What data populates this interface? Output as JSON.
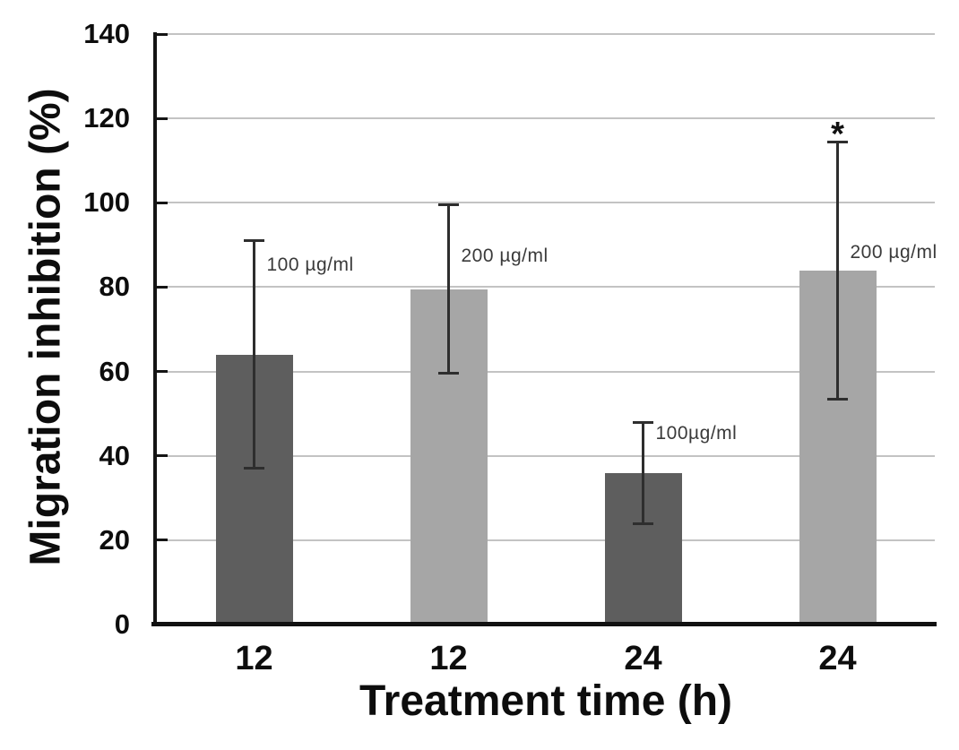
{
  "figure": {
    "background": "#ffffff"
  },
  "colors": {
    "dark_bar": "#5e5e5e",
    "light_bar": "#a6a6a6",
    "gridline": "#c3c3c3",
    "axis": "#141414",
    "error_bar": "#2e2e2e",
    "annotation_text": "#3a3a3a",
    "tick_text": "#0d0d0d"
  },
  "chart_data": {
    "type": "bar",
    "title": "",
    "xlabel": "Treatment time (h)",
    "ylabel": "Migration inhibition (%)",
    "ylim": [
      0,
      140
    ],
    "yticks": [
      0,
      20,
      40,
      60,
      80,
      100,
      120,
      140
    ],
    "grid": true,
    "legend_position": "none",
    "categories": [
      "12",
      "12",
      "24",
      "24"
    ],
    "bars": [
      {
        "category": "12",
        "dose_label": "100 µg/ml",
        "value": 64,
        "error_low": 37,
        "error_high": 91,
        "color": "#5e5e5e",
        "significance": "",
        "label_y": 85
      },
      {
        "category": "12",
        "dose_label": "200 µg/ml",
        "value": 79.5,
        "error_low": 59.5,
        "error_high": 99.5,
        "color": "#a6a6a6",
        "significance": "",
        "label_y": 87
      },
      {
        "category": "24",
        "dose_label": "100µg/ml",
        "value": 36,
        "error_low": 24,
        "error_high": 48,
        "color": "#5e5e5e",
        "significance": "",
        "label_y": 45
      },
      {
        "category": "24",
        "dose_label": "200 µg/ml",
        "value": 84,
        "error_low": 53.5,
        "error_high": 114.5,
        "color": "#a6a6a6",
        "significance": "*",
        "label_y": 88,
        "significance_y": 118
      }
    ]
  }
}
